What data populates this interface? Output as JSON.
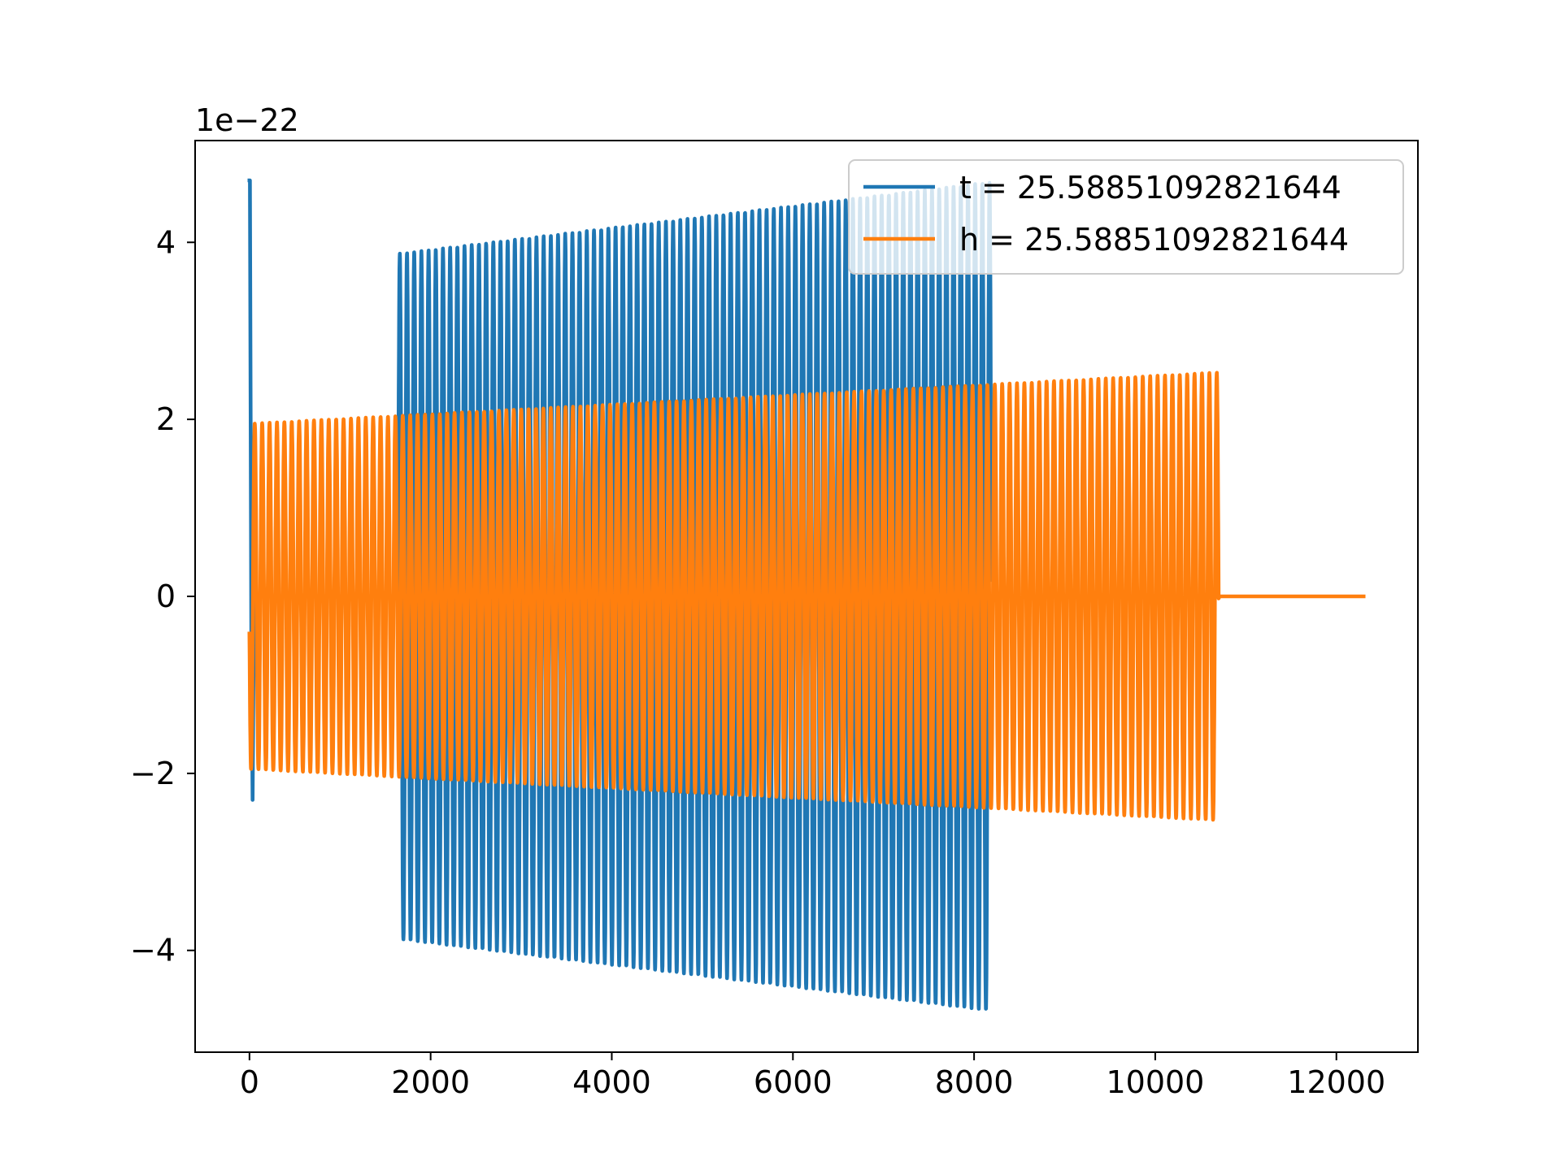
{
  "chart_data": {
    "type": "line",
    "title": "",
    "xlabel": "",
    "ylabel": "",
    "y_offset_label": "1e−22",
    "xlim": [
      -600,
      12900
    ],
    "ylim": [
      -5.15,
      5.15
    ],
    "x_ticks": [
      0,
      2000,
      4000,
      6000,
      8000,
      10000,
      12000
    ],
    "x_tick_labels": [
      "0",
      "2000",
      "4000",
      "6000",
      "8000",
      "10000",
      "12000"
    ],
    "y_ticks": [
      -4,
      -2,
      0,
      2,
      4
    ],
    "y_tick_labels": [
      "−4",
      "−2",
      "0",
      "2",
      "4"
    ],
    "grid": false,
    "legend_position": "top-right",
    "series": [
      {
        "name": "t = 25.58851092821644",
        "color": "#1f77b4",
        "description": "damped ringdown spike at start, silent (0) until ~1640, then sinusoidal oscillation with slowly increasing amplitude until ~8190",
        "start_spike": {
          "x": [
            0,
            5,
            20,
            35,
            50
          ],
          "y": [
            4.7,
            4.7,
            -0.4,
            -2.3,
            0
          ]
        },
        "silent_until": 1640,
        "oscillation": {
          "x_start": 1640,
          "x_end": 8190,
          "amp_start": 3.87,
          "amp_end": 4.68,
          "period": 79.4
        }
      },
      {
        "name": "h = 25.58851092821644",
        "color": "#ff7f0e",
        "description": "sinusoidal oscillation from 0 to ~10700 with slowly increasing amplitude, then flat 0 until ~12300",
        "oscillation": {
          "x_start": 0,
          "x_end": 10700,
          "amp_start": 1.95,
          "amp_end": 2.53,
          "period": 81.7,
          "start_value": -0.42
        },
        "flat_until": 12300
      }
    ]
  }
}
